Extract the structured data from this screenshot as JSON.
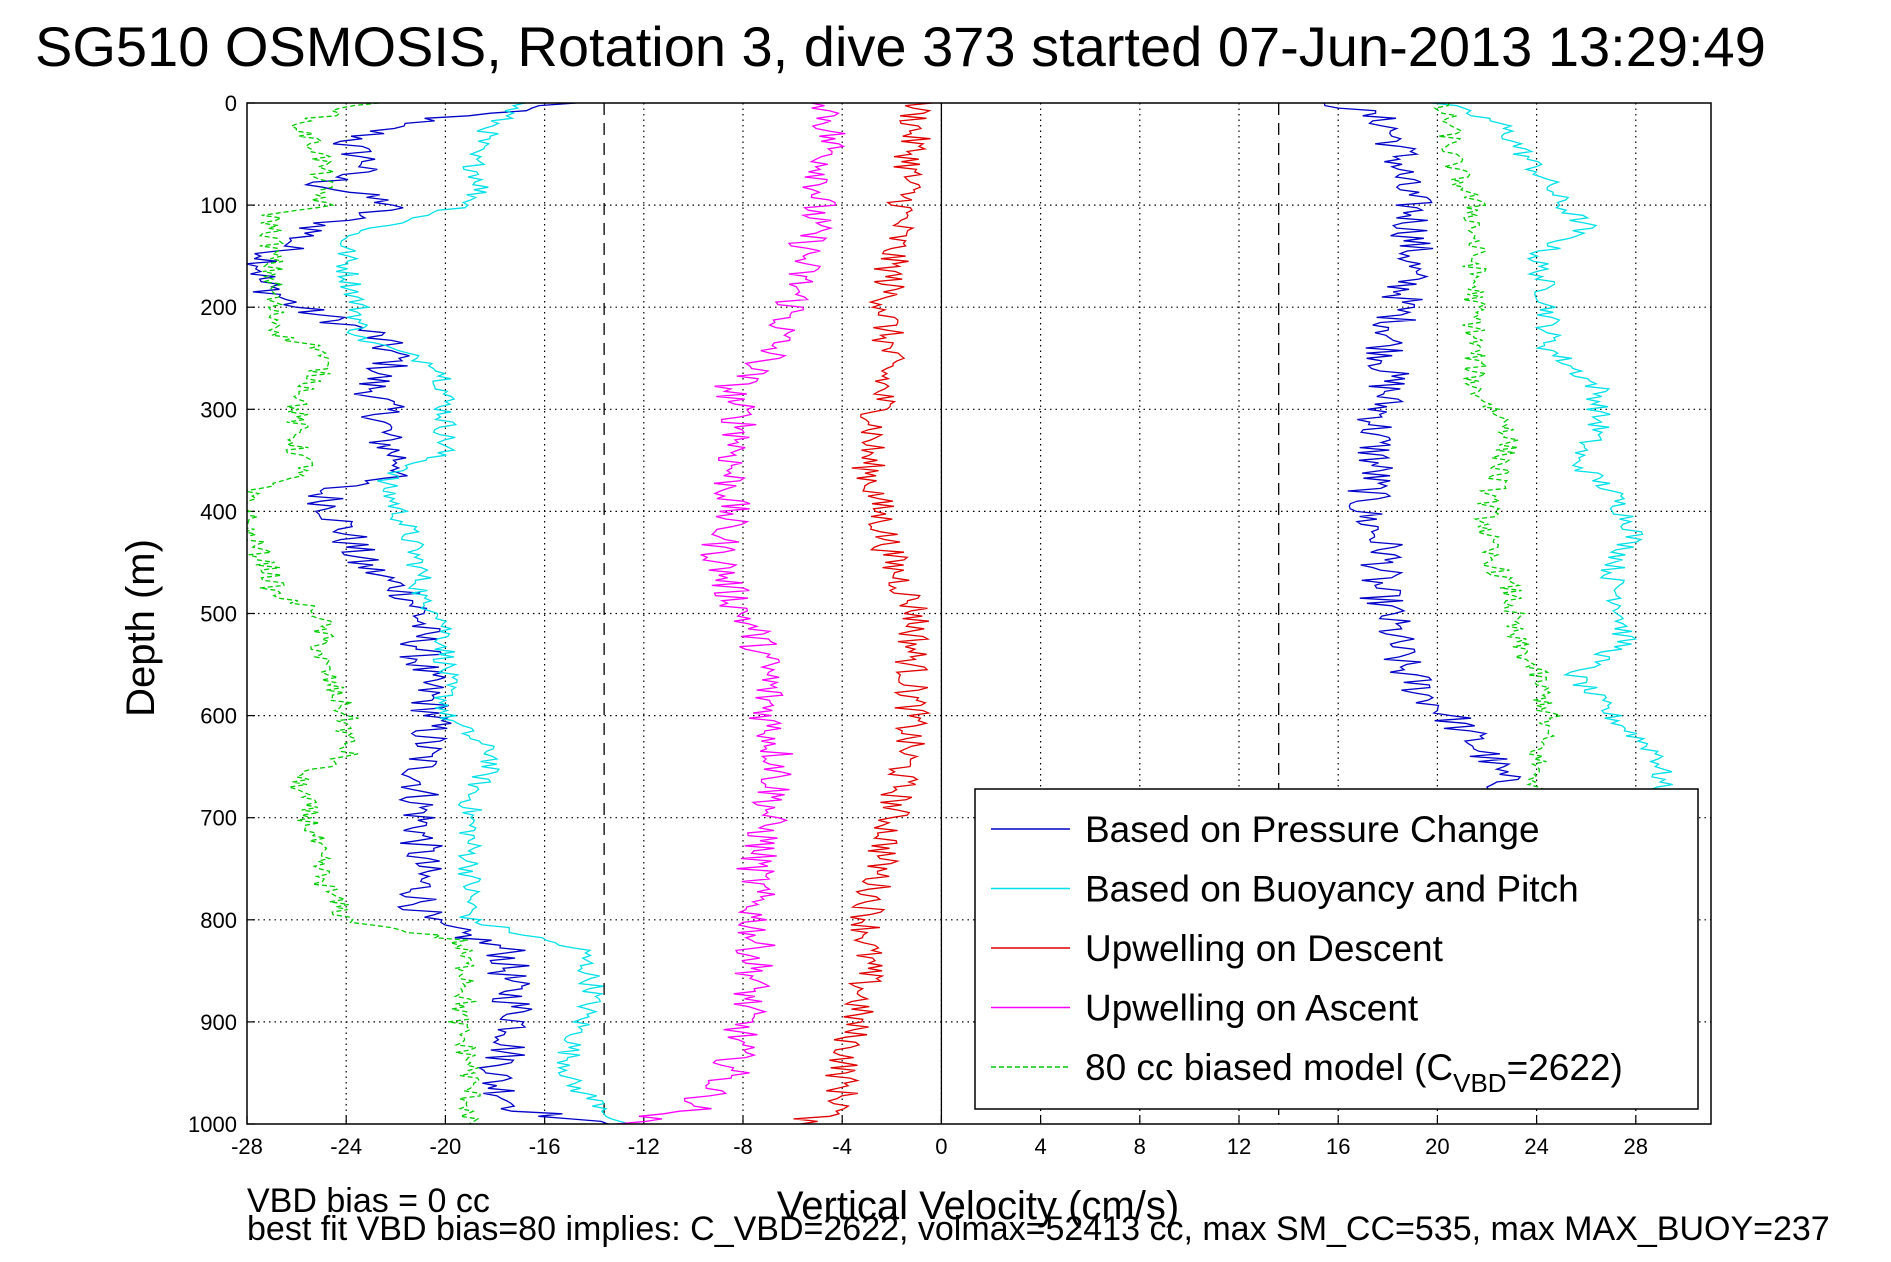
{
  "title": "SG510 OSMOSIS, Rotation 3, dive 373 started 07-Jun-2013 13:29:49",
  "footer": {
    "line1": "VBD bias = 0 cc",
    "line2": "best fit VBD bias=80 implies: C_VBD=2622, volmax=52413 cc, max SM_CC=535, max MAX_BUOY=237"
  },
  "chart_data": {
    "type": "line",
    "xlabel": "Vertical Velocity (cm/s)",
    "ylabel": "Depth (m)",
    "xlim": [
      -28,
      31
    ],
    "ylim": [
      1000,
      0
    ],
    "y_reversed": true,
    "grid": true,
    "xticks": [
      -28,
      -24,
      -20,
      -16,
      -12,
      -8,
      -4,
      0,
      4,
      8,
      12,
      16,
      20,
      24,
      28
    ],
    "yticks": [
      0,
      100,
      200,
      300,
      400,
      500,
      600,
      700,
      800,
      900,
      1000
    ],
    "reference_lines": [
      {
        "x": -13.6,
        "style": "dashed",
        "color": "#000000"
      },
      {
        "x": 13.6,
        "style": "dashed",
        "color": "#000000"
      },
      {
        "x": 0,
        "style": "solid",
        "color": "#000000"
      }
    ],
    "legend_position": "lower-right",
    "series": [
      {
        "name": "Based on Pressure Change",
        "color": "#0000c8",
        "style": "solid",
        "noise": 0.9,
        "descent": {
          "depth": [
            0,
            20,
            40,
            60,
            80,
            100,
            120,
            150,
            175,
            200,
            225,
            250,
            275,
            300,
            330,
            360,
            380,
            420,
            450,
            480,
            500,
            550,
            600,
            650,
            700,
            760,
            800,
            830,
            860,
            900,
            930,
            960,
            985,
            1000
          ],
          "v": [
            -15,
            -22,
            -24,
            -23,
            -25,
            -22,
            -25,
            -27,
            -27.5,
            -26,
            -23,
            -22,
            -23,
            -22.5,
            -22.5,
            -21.5,
            -25,
            -24,
            -23.5,
            -21.5,
            -21,
            -21,
            -20.5,
            -21,
            -21,
            -21,
            -21,
            -17.5,
            -17.5,
            -17,
            -17.5,
            -18,
            -17,
            -14
          ]
        },
        "ascent": {
          "depth": [
            0,
            20,
            50,
            80,
            100,
            150,
            200,
            240,
            280,
            320,
            360,
            400,
            440,
            470,
            500,
            550,
            580,
            600,
            640,
            680
          ],
          "v": [
            16,
            18,
            18.5,
            18.5,
            19,
            19,
            18.5,
            18,
            18,
            17.5,
            17.5,
            17,
            18,
            17.5,
            18,
            18.5,
            19.5,
            20.5,
            22,
            23
          ]
        }
      },
      {
        "name": "Based on Buoyancy and Pitch",
        "color": "#00e0e8",
        "style": "solid",
        "noise": 0.5,
        "descent": {
          "depth": [
            0,
            20,
            50,
            80,
            100,
            130,
            160,
            200,
            230,
            260,
            300,
            340,
            370,
            420,
            460,
            490,
            500,
            550,
            600,
            640,
            680,
            720,
            760,
            800,
            830,
            870,
            900,
            930,
            960,
            985,
            1000
          ],
          "v": [
            -17,
            -18,
            -19,
            -18.5,
            -19,
            -24,
            -24,
            -23.5,
            -23.5,
            -20,
            -20,
            -20,
            -22.5,
            -21.5,
            -21,
            -21,
            -20,
            -20,
            -20,
            -18,
            -19,
            -19,
            -19,
            -19,
            -14.5,
            -14,
            -14.5,
            -15,
            -15,
            -13.5,
            -13
          ]
        },
        "ascent": {
          "depth": [
            0,
            20,
            50,
            80,
            100,
            120,
            150,
            200,
            240,
            280,
            320,
            350,
            380,
            420,
            460,
            500,
            530,
            560,
            600,
            640,
            680
          ],
          "v": [
            20,
            22.5,
            23.5,
            24.5,
            25,
            26,
            24,
            24.5,
            24.5,
            26.5,
            26.5,
            25.5,
            27,
            28,
            27,
            27.5,
            27.5,
            25.5,
            27,
            29,
            29
          ]
        }
      },
      {
        "name": "Upwelling on Descent",
        "color": "#e00000",
        "style": "solid",
        "noise": 0.7,
        "descent": {
          "depth": [
            0,
            50,
            100,
            150,
            200,
            250,
            300,
            350,
            400,
            450,
            500,
            550,
            600,
            650,
            700,
            750,
            800,
            850,
            900,
            950,
            985,
            1000
          ],
          "v": [
            -1,
            -1.2,
            -1.5,
            -2,
            -2.2,
            -2.2,
            -2.5,
            -3,
            -2.5,
            -2,
            -1,
            -1.2,
            -1.2,
            -1.5,
            -2,
            -2.5,
            -3,
            -3,
            -3.5,
            -4,
            -4,
            -6
          ]
        }
      },
      {
        "name": "Upwelling on Ascent",
        "color": "#ff00ff",
        "style": "solid",
        "noise": 0.8,
        "descent": {
          "depth": [
            0,
            50,
            100,
            150,
            200,
            250,
            280,
            320,
            360,
            400,
            440,
            480,
            520,
            560,
            600,
            650,
            700,
            750,
            800,
            850,
            900,
            950,
            985,
            1000
          ],
          "v": [
            -4.5,
            -4.5,
            -5,
            -5.5,
            -6,
            -7,
            -8.5,
            -8,
            -8.5,
            -8.5,
            -9,
            -8.5,
            -7.5,
            -7,
            -7,
            -6.5,
            -7,
            -7.5,
            -7.5,
            -7.5,
            -8,
            -8.5,
            -10,
            -13
          ]
        }
      },
      {
        "name": "80 cc biased model (C",
        "name_sub": "VBD",
        "name_end": "=2622)",
        "color": "#00cc00",
        "style": "dashed",
        "noise": 0.5,
        "descent": {
          "depth": [
            0,
            20,
            50,
            80,
            100,
            110,
            130,
            200,
            230,
            240,
            260,
            300,
            340,
            360,
            380,
            420,
            460,
            480,
            500,
            550,
            600,
            640,
            660,
            700,
            760,
            800,
            820,
            860,
            900,
            940,
            980,
            1000
          ],
          "v": [
            -23,
            -26,
            -25,
            -25,
            -25,
            -27,
            -27,
            -27,
            -26.5,
            -25,
            -25,
            -26,
            -26,
            -25.5,
            -28,
            -28,
            -27,
            -27,
            -25,
            -25,
            -24,
            -24,
            -26,
            -25.5,
            -25,
            -24,
            -19.5,
            -19,
            -19.5,
            -19,
            -19,
            -19
          ]
        },
        "ascent": {
          "depth": [
            0,
            20,
            50,
            80,
            100,
            150,
            200,
            240,
            280,
            320,
            360,
            400,
            440,
            480,
            520,
            560,
            600,
            640,
            680
          ],
          "v": [
            20,
            20.5,
            20.5,
            21,
            21.5,
            21.5,
            21.5,
            21.5,
            21.5,
            23,
            22.5,
            22,
            22,
            23,
            23,
            24,
            24.5,
            24,
            24
          ]
        }
      }
    ]
  }
}
